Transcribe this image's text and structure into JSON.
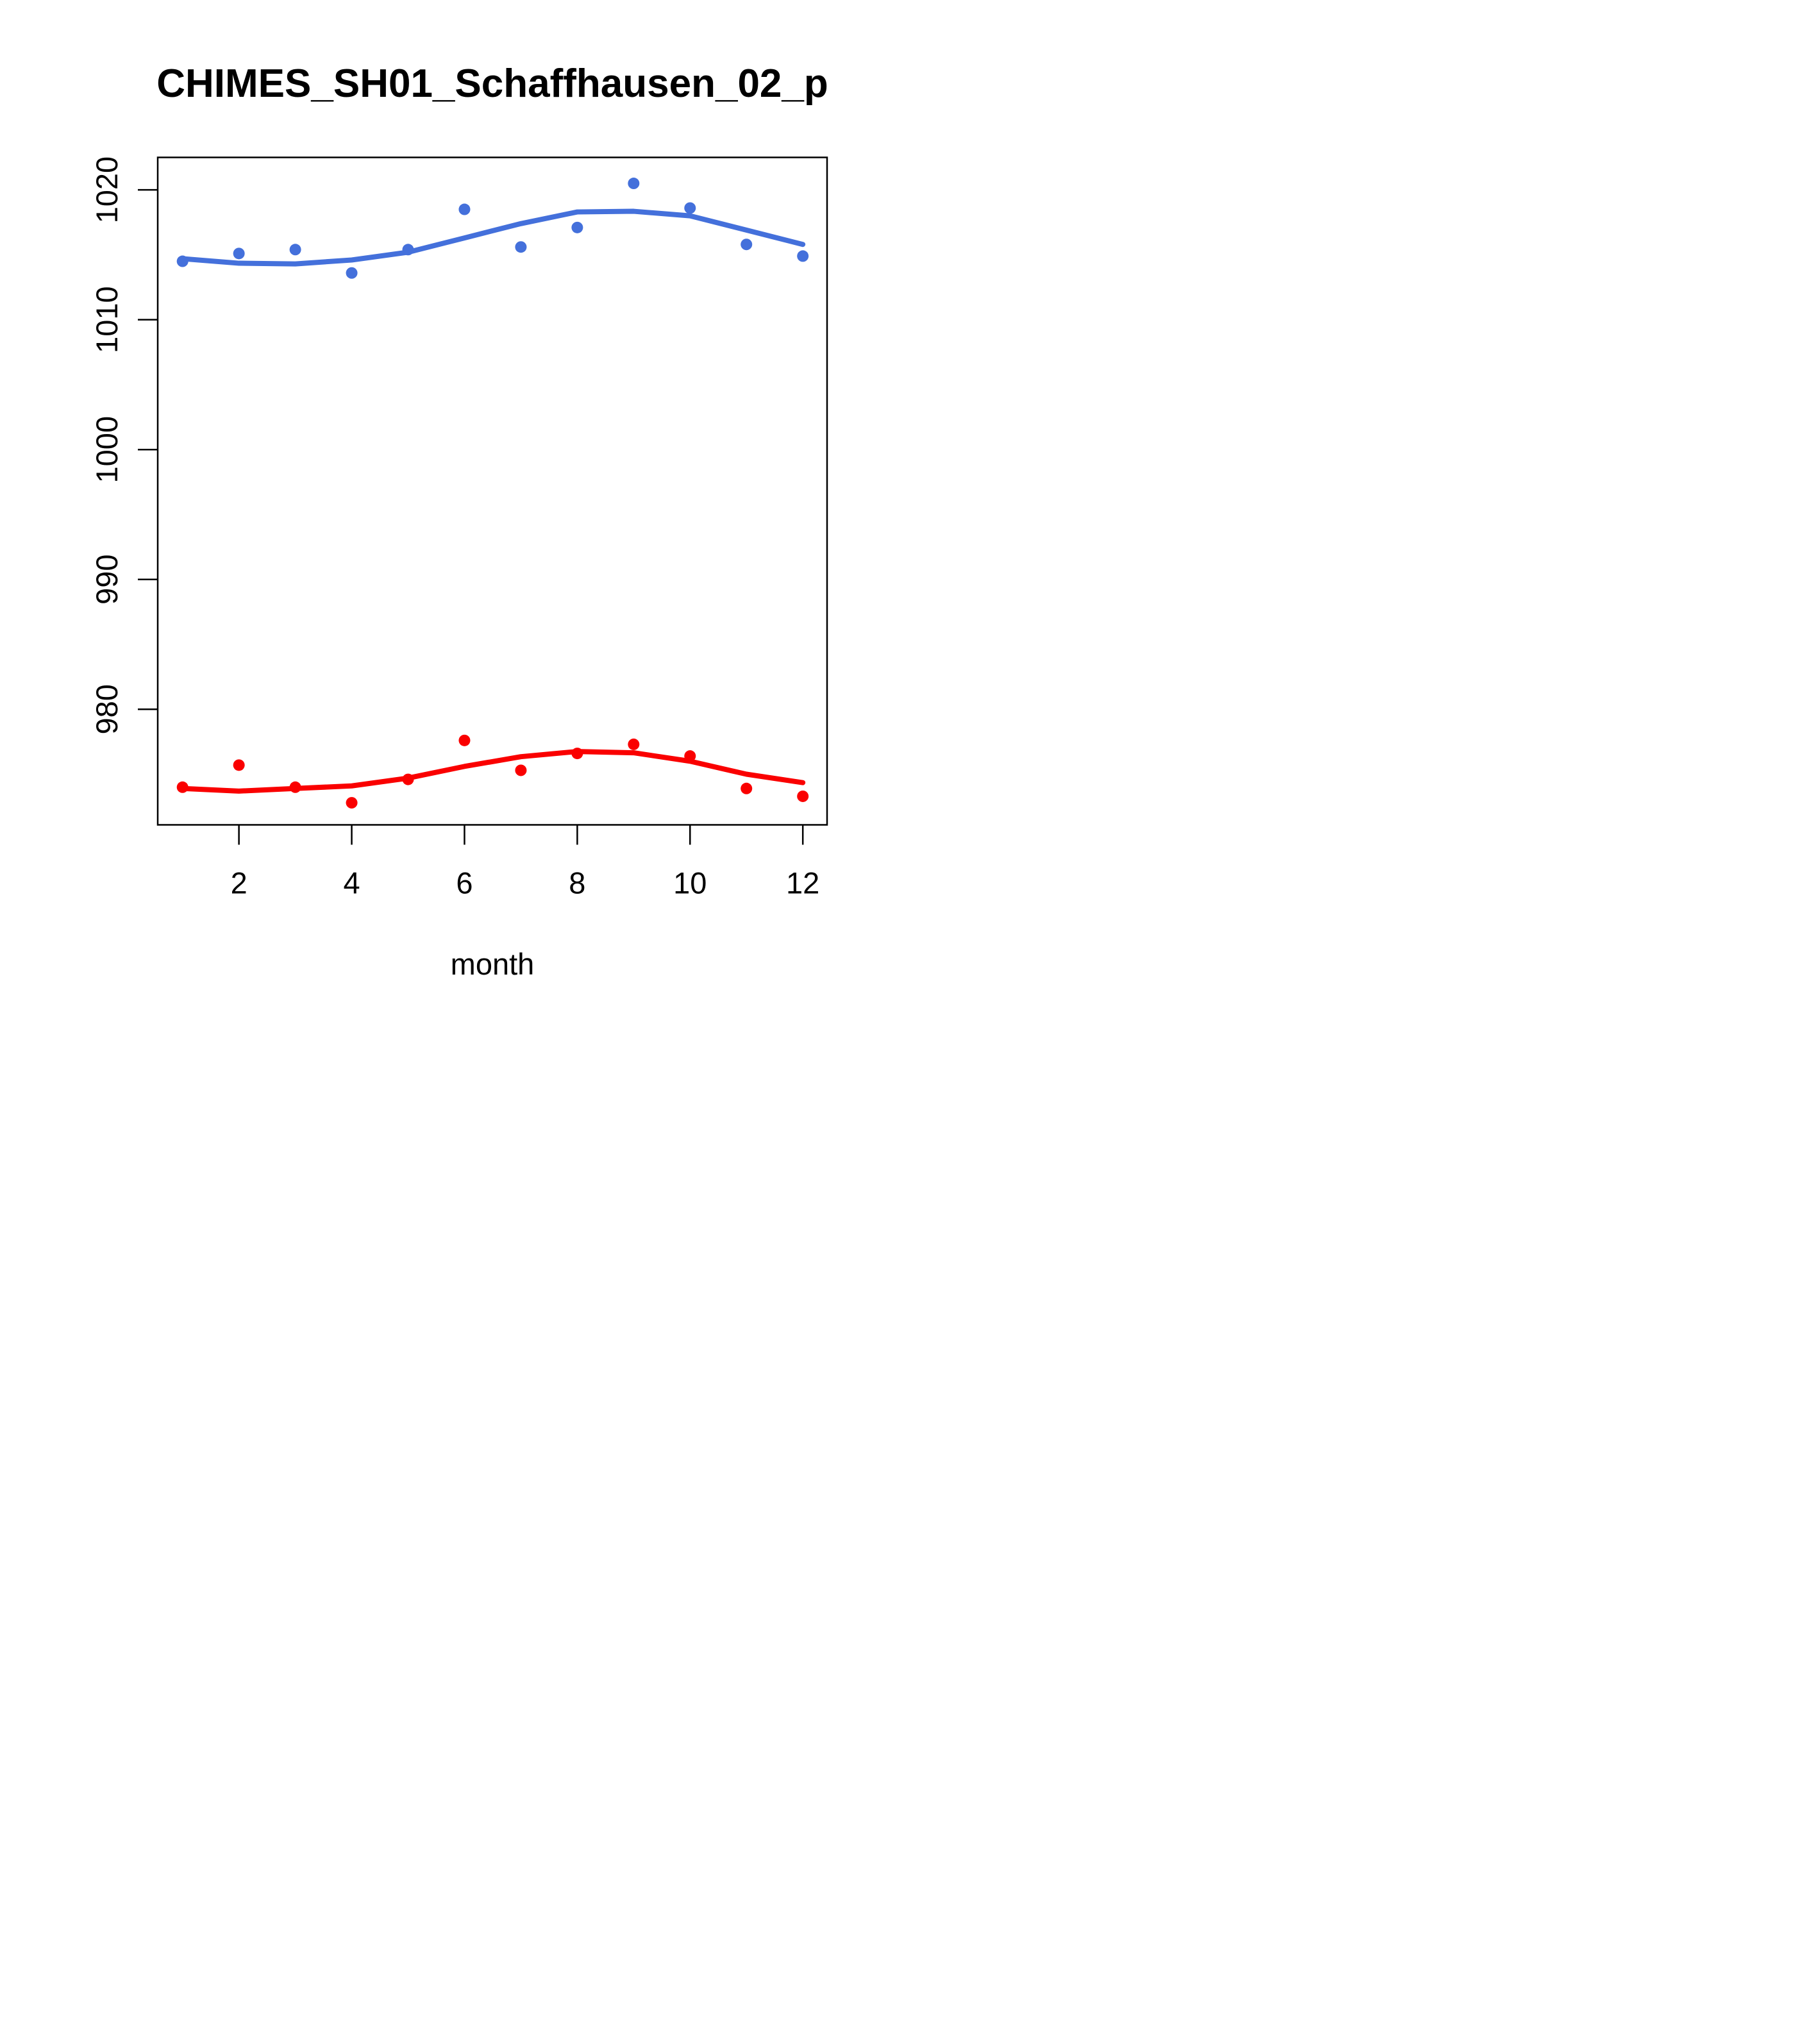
{
  "chart_data": {
    "type": "scatter",
    "title": "CHIMES_SH01_Schaffhausen_02_p",
    "xlabel": "month",
    "ylabel": "",
    "x": [
      1,
      2,
      3,
      4,
      5,
      6,
      7,
      8,
      9,
      10,
      11,
      12
    ],
    "xticks": [
      2,
      4,
      6,
      8,
      10,
      12
    ],
    "yticks": [
      980,
      990,
      1000,
      1010,
      1020
    ],
    "xlim": [
      0.56,
      12.43
    ],
    "ylim": [
      971.1,
      1022.5
    ],
    "grid": false,
    "legend_position": "none",
    "axis_color": "#000000",
    "background_color": "#ffffff",
    "series": [
      {
        "name": "blue-upper-series",
        "color": "#4470db",
        "marker": "filled-circle",
        "points": [
          1014.5,
          1015.1,
          1015.4,
          1013.6,
          1015.4,
          1018.5,
          1015.6,
          1017.1,
          1020.5,
          1018.6,
          1015.8,
          1014.9
        ],
        "smooth_line": [
          1014.7,
          1014.35,
          1014.3,
          1014.6,
          1015.2,
          1016.3,
          1017.4,
          1018.3,
          1018.35,
          1018.0,
          1016.9,
          1015.8
        ]
      },
      {
        "name": "red-lower-series",
        "color": "#fa0000",
        "marker": "filled-circle",
        "points": [
          974.0,
          975.7,
          974.0,
          972.8,
          974.6,
          977.6,
          975.3,
          976.6,
          977.3,
          976.4,
          973.9,
          973.3
        ],
        "smooth_line": [
          973.9,
          973.7,
          973.9,
          974.1,
          974.7,
          975.6,
          976.35,
          976.75,
          976.65,
          976.0,
          975.0,
          974.35
        ]
      }
    ]
  }
}
